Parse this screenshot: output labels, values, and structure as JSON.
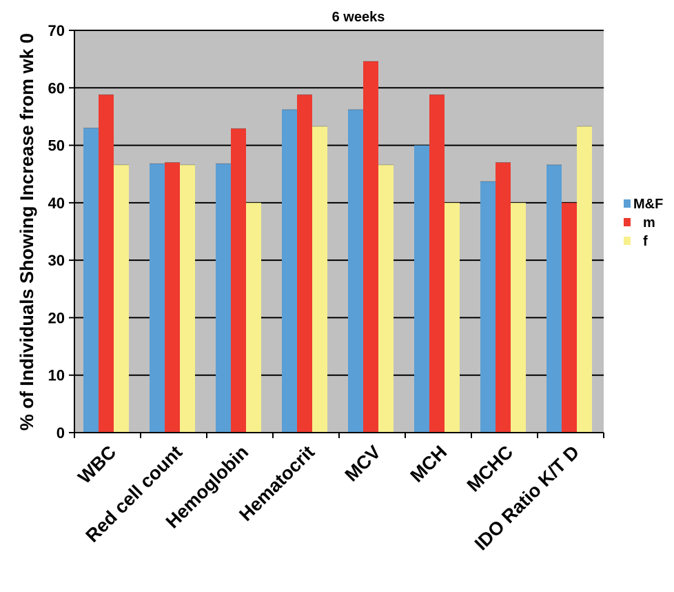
{
  "chart_data": {
    "type": "bar",
    "title": "6 weeks",
    "xlabel": "",
    "ylabel": "% of Individuals Showing Increase from wk 0",
    "ylim": [
      0,
      70
    ],
    "yticks": [
      0,
      10,
      20,
      30,
      40,
      50,
      60,
      70
    ],
    "grid": true,
    "legend_position": "right",
    "categories": [
      "WBC",
      "Red cell count",
      "Hemoglobin",
      "Hematocrit",
      "MCV",
      "MCH",
      "MCHC",
      "IDO Ratio K/T D"
    ],
    "series": [
      {
        "name": "M&F",
        "color": "#5a9fd6",
        "values": [
          53,
          46.8,
          46.8,
          56.2,
          56.2,
          50,
          43.7,
          46.6
        ]
      },
      {
        "name": "m",
        "color": "#ef3a2f",
        "values": [
          58.8,
          47,
          52.9,
          58.8,
          64.6,
          58.8,
          47,
          40
        ]
      },
      {
        "name": "f",
        "color": "#f7f08d",
        "values": [
          46.6,
          46.6,
          40,
          53.3,
          46.6,
          40,
          40,
          53.3
        ]
      }
    ],
    "plot_background": "#c0c0c0"
  }
}
